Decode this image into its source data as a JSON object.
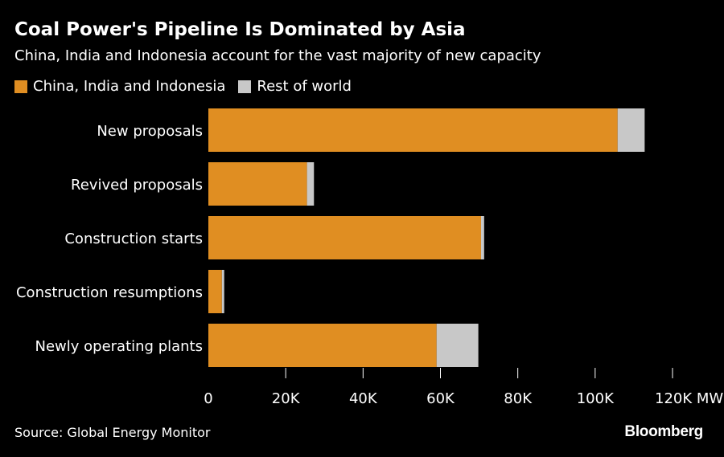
{
  "title": "Coal Power's Pipeline Is Dominated by Asia",
  "subtitle": "China, India and Indonesia account for the vast majority of new capacity",
  "legend": [
    {
      "label": "China, India and Indonesia",
      "color": "#e08e22"
    },
    {
      "label": "Rest of world",
      "color": "#c8c8c8"
    }
  ],
  "source": "Source: Global Energy Monitor",
  "brand": "Bloomberg",
  "chart_data": {
    "type": "bar",
    "orientation": "horizontal",
    "stacked": true,
    "categories": [
      "New proposals",
      "Revived proposals",
      "Construction starts",
      "Construction resumptions",
      "Newly operating plants"
    ],
    "series": [
      {
        "name": "China, India and Indonesia",
        "color": "#e08e22",
        "values": [
          105800,
          25500,
          70500,
          3500,
          59000
        ]
      },
      {
        "name": "Rest of world",
        "color": "#c8c8c8",
        "values": [
          7000,
          1800,
          800,
          600,
          10800
        ]
      }
    ],
    "xlim": [
      0,
      120000
    ],
    "xticks": [
      0,
      20000,
      40000,
      60000,
      80000,
      100000,
      120000
    ],
    "xtick_labels": [
      "0",
      "20K",
      "40K",
      "60K",
      "80K",
      "100K",
      "120K MW"
    ],
    "grid": false,
    "legend_position": "top-left"
  }
}
